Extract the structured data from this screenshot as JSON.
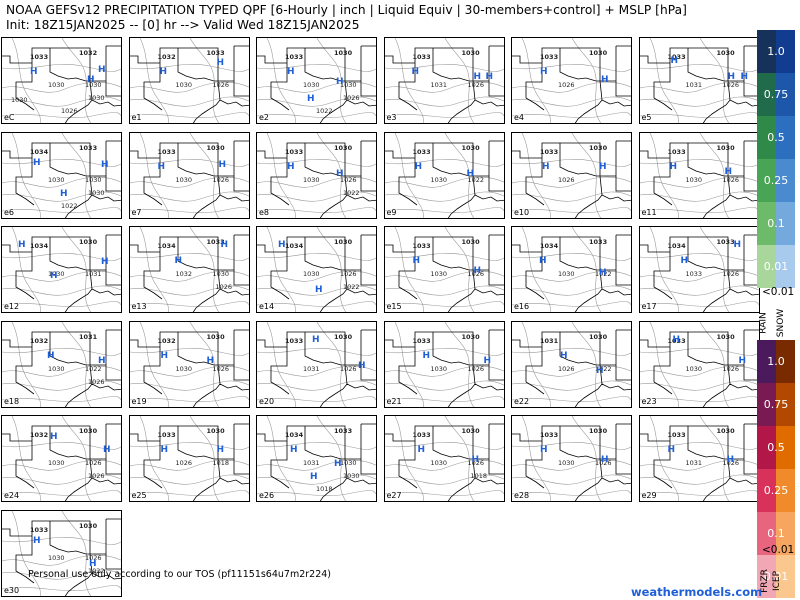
{
  "title": {
    "line1": "NOAA GEFSv12 PRECIPITATION TYPED QPF [6-Hourly | inch | Liquid Equiv | 30-members+control] + MSLP [hPa]",
    "line2": "Init: 18Z15JAN2025 -- [0] hr --> Valid Wed 18Z15JAN2025"
  },
  "panels": [
    {
      "label": "eC",
      "isobars": [
        "1033",
        "1032",
        "1030",
        "1030",
        "1030",
        "1026",
        "1030"
      ],
      "highs": [
        [
          0.26,
          0.34
        ],
        [
          0.73,
          0.44
        ],
        [
          0.82,
          0.32
        ]
      ]
    },
    {
      "label": "e1",
      "isobars": [
        "1032",
        "1033",
        "1030",
        "1026"
      ],
      "highs": [
        [
          0.27,
          0.34
        ],
        [
          0.74,
          0.24
        ]
      ]
    },
    {
      "label": "e2",
      "isobars": [
        "1033",
        "1030",
        "1030",
        "1030",
        "1026",
        "1022"
      ],
      "highs": [
        [
          0.27,
          0.34
        ],
        [
          0.68,
          0.46
        ],
        [
          0.44,
          0.66
        ]
      ]
    },
    {
      "label": "e3",
      "isobars": [
        "1033",
        "1030",
        "1031",
        "1026"
      ],
      "highs": [
        [
          0.25,
          0.34
        ],
        [
          0.76,
          0.4
        ],
        [
          0.86,
          0.4
        ]
      ]
    },
    {
      "label": "e4",
      "isobars": [
        "1033",
        "1030",
        "1026"
      ],
      "highs": [
        [
          0.26,
          0.34
        ],
        [
          0.76,
          0.44
        ]
      ]
    },
    {
      "label": "e5",
      "isobars": [
        "1033",
        "1030",
        "1031",
        "1026"
      ],
      "highs": [
        [
          0.28,
          0.22
        ],
        [
          0.75,
          0.4
        ],
        [
          0.86,
          0.4
        ]
      ]
    },
    {
      "label": "e6",
      "isobars": [
        "1034",
        "1033",
        "1030",
        "1030",
        "1030",
        "1022"
      ],
      "highs": [
        [
          0.28,
          0.3
        ],
        [
          0.5,
          0.66
        ],
        [
          0.84,
          0.32
        ]
      ]
    },
    {
      "label": "e7",
      "isobars": [
        "1033",
        "1030",
        "1030",
        "1026"
      ],
      "highs": [
        [
          0.26,
          0.34
        ],
        [
          0.76,
          0.32
        ]
      ]
    },
    {
      "label": "e8",
      "isobars": [
        "1033",
        "1030",
        "1030",
        "1026",
        "1022"
      ],
      "highs": [
        [
          0.27,
          0.34
        ],
        [
          0.68,
          0.42
        ]
      ]
    },
    {
      "label": "e9",
      "isobars": [
        "1033",
        "1030",
        "1030",
        "1022"
      ],
      "highs": [
        [
          0.27,
          0.34
        ],
        [
          0.7,
          0.42
        ]
      ]
    },
    {
      "label": "e10",
      "isobars": [
        "1033",
        "1030",
        "1026"
      ],
      "highs": [
        [
          0.27,
          0.34
        ],
        [
          0.74,
          0.34
        ]
      ]
    },
    {
      "label": "e11",
      "isobars": [
        "1033",
        "1030",
        "1030",
        "1026"
      ],
      "highs": [
        [
          0.27,
          0.34
        ],
        [
          0.73,
          0.4
        ]
      ]
    },
    {
      "label": "e12",
      "isobars": [
        "1034",
        "1030",
        "1030",
        "1031"
      ],
      "highs": [
        [
          0.16,
          0.16
        ],
        [
          0.42,
          0.52
        ],
        [
          0.84,
          0.36
        ]
      ]
    },
    {
      "label": "e13",
      "isobars": [
        "1034",
        "1033",
        "1032",
        "1030",
        "1026"
      ],
      "highs": [
        [
          0.4,
          0.34
        ],
        [
          0.78,
          0.16
        ]
      ]
    },
    {
      "label": "e14",
      "isobars": [
        "1034",
        "1030",
        "1030",
        "1026",
        "1022"
      ],
      "highs": [
        [
          0.2,
          0.16
        ],
        [
          0.5,
          0.68
        ]
      ]
    },
    {
      "label": "e15",
      "isobars": [
        "1033",
        "1030",
        "1030",
        "1026"
      ],
      "highs": [
        [
          0.26,
          0.34
        ],
        [
          0.76,
          0.46
        ]
      ]
    },
    {
      "label": "e16",
      "isobars": [
        "1034",
        "1033",
        "1030",
        "1022"
      ],
      "highs": [
        [
          0.25,
          0.34
        ],
        [
          0.74,
          0.48
        ]
      ]
    },
    {
      "label": "e17",
      "isobars": [
        "1034",
        "1033",
        "1033",
        "1026"
      ],
      "highs": [
        [
          0.36,
          0.34
        ],
        [
          0.8,
          0.16
        ]
      ]
    },
    {
      "label": "e18",
      "isobars": [
        "1032",
        "1031",
        "1030",
        "1022",
        "1026"
      ],
      "highs": [
        [
          0.4,
          0.34
        ],
        [
          0.82,
          0.4
        ]
      ]
    },
    {
      "label": "e19",
      "isobars": [
        "1032",
        "1030",
        "1030",
        "1026"
      ],
      "highs": [
        [
          0.28,
          0.34
        ],
        [
          0.66,
          0.4
        ]
      ]
    },
    {
      "label": "e20",
      "isobars": [
        "1033",
        "1030",
        "1031",
        "1026"
      ],
      "highs": [
        [
          0.48,
          0.16
        ],
        [
          0.86,
          0.46
        ]
      ]
    },
    {
      "label": "e21",
      "isobars": [
        "1033",
        "1030",
        "1030",
        "1026"
      ],
      "highs": [
        [
          0.34,
          0.34
        ],
        [
          0.84,
          0.4
        ]
      ]
    },
    {
      "label": "e22",
      "isobars": [
        "1031",
        "1030",
        "1026",
        "1022"
      ],
      "highs": [
        [
          0.42,
          0.34
        ],
        [
          0.72,
          0.52
        ]
      ]
    },
    {
      "label": "e23",
      "isobars": [
        "1033",
        "1030",
        "1030",
        "1026"
      ],
      "highs": [
        [
          0.3,
          0.16
        ],
        [
          0.84,
          0.4
        ]
      ]
    },
    {
      "label": "e24",
      "isobars": [
        "1032",
        "1030",
        "1030",
        "1026",
        "1026"
      ],
      "highs": [
        [
          0.42,
          0.2
        ],
        [
          0.86,
          0.34
        ]
      ]
    },
    {
      "label": "e25",
      "isobars": [
        "1033",
        "1030",
        "1026",
        "1018"
      ],
      "highs": [
        [
          0.28,
          0.34
        ],
        [
          0.74,
          0.34
        ]
      ]
    },
    {
      "label": "e26",
      "isobars": [
        "1034",
        "1033",
        "1031",
        "1030",
        "1030",
        "1018"
      ],
      "highs": [
        [
          0.3,
          0.34
        ],
        [
          0.66,
          0.5
        ],
        [
          0.46,
          0.66
        ]
      ]
    },
    {
      "label": "e27",
      "isobars": [
        "1033",
        "1030",
        "1030",
        "1026",
        "1018"
      ],
      "highs": [
        [
          0.3,
          0.34
        ],
        [
          0.74,
          0.46
        ]
      ]
    },
    {
      "label": "e28",
      "isobars": [
        "1033",
        "1030",
        "1030",
        "1026"
      ],
      "highs": [
        [
          0.26,
          0.34
        ],
        [
          0.76,
          0.46
        ]
      ]
    },
    {
      "label": "e29",
      "isobars": [
        "1033",
        "1030",
        "1031",
        "1026"
      ],
      "highs": [
        [
          0.26,
          0.34
        ],
        [
          0.74,
          0.46
        ]
      ]
    },
    {
      "label": "e30",
      "isobars": [
        "1033",
        "1030",
        "1030",
        "1026",
        "1022"
      ],
      "highs": [
        [
          0.28,
          0.3
        ],
        [
          0.74,
          0.56
        ]
      ]
    }
  ],
  "legend": {
    "rain": {
      "label": "RAIN",
      "levels": [
        {
          "text": "1.0",
          "color": "#17325a"
        },
        {
          "text": "0.75",
          "color": "#1f6b4a"
        },
        {
          "text": "0.5",
          "color": "#2f8a4a"
        },
        {
          "text": "0.25",
          "color": "#4aa456"
        },
        {
          "text": "0.1",
          "color": "#6dbb6a"
        },
        {
          "text": "0.01",
          "color": "#a9d79b"
        }
      ],
      "blues": [
        "#123c8f",
        "#1d57aa",
        "#2b6fbe",
        "#4a8bd0",
        "#74a9de",
        "#a8cbed"
      ]
    },
    "snow_label": "SNOW",
    "mix": {
      "levels": [
        {
          "text": "1.0",
          "color": "#4a1a5c"
        },
        {
          "text": "0.75",
          "color": "#7a1a52"
        },
        {
          "text": "0.5",
          "color": "#b11748"
        },
        {
          "text": "0.25",
          "color": "#d8325a"
        },
        {
          "text": "0.1",
          "color": "#e8657f"
        },
        {
          "text": "0.01",
          "color": "#f1a8b4"
        }
      ],
      "oranges": [
        "#7a2a00",
        "#b34900",
        "#e06c00",
        "#f08a2a",
        "#f6a65e",
        "#fac78f"
      ]
    },
    "less_than": "<0.01",
    "frzr_label": "FRZR",
    "icep_label": "ICEP"
  },
  "footer": "Personal use only according to our TOS (pf11151s64u7m2r224)",
  "brand": "weathermodels.com"
}
